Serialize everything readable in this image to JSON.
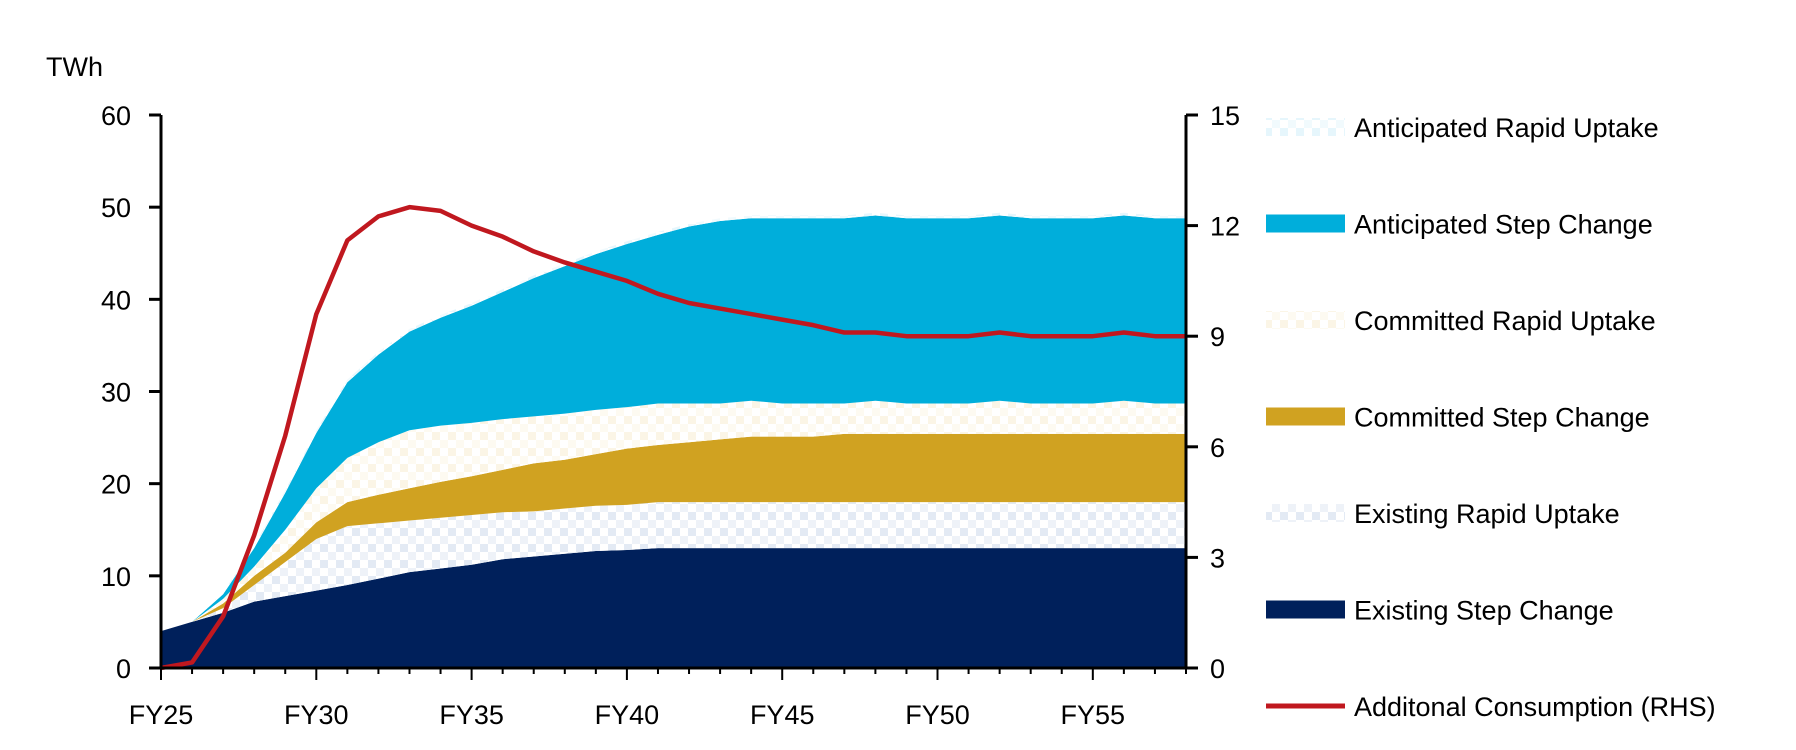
{
  "chart_data": {
    "type": "area",
    "title": "",
    "ylabel": "TWh",
    "y2label": "",
    "ylim": [
      0,
      60
    ],
    "y2lim": [
      0,
      15
    ],
    "yticks": [
      "0",
      "10",
      "20",
      "30",
      "40",
      "50",
      "60"
    ],
    "y2ticks": [
      "0",
      "3",
      "6",
      "9",
      "12",
      "15"
    ],
    "xticks": [
      "FY25",
      "FY30",
      "FY35",
      "FY40",
      "FY45",
      "FY50",
      "FY55"
    ],
    "x": [
      "FY25",
      "FY26",
      "FY27",
      "FY28",
      "FY29",
      "FY30",
      "FY31",
      "FY32",
      "FY33",
      "FY34",
      "FY35",
      "FY36",
      "FY37",
      "FY38",
      "FY39",
      "FY40",
      "FY41",
      "FY42",
      "FY43",
      "FY44",
      "FY45",
      "FY46",
      "FY47",
      "FY48",
      "FY49",
      "FY50",
      "FY51",
      "FY52",
      "FY53",
      "FY54",
      "FY55",
      "FY56",
      "FY57",
      "FY58"
    ],
    "stacked": true,
    "legend_position": "right",
    "series": [
      {
        "name": "Existing Step Change",
        "color": "#00205B",
        "fill": "solid",
        "values": [
          4,
          5,
          6,
          7.2,
          7.8,
          8.4,
          9,
          9.7,
          10.4,
          10.8,
          11.2,
          11.8,
          12.1,
          12.4,
          12.7,
          12.8,
          13,
          13,
          13,
          13,
          13,
          13,
          13,
          13,
          13,
          13,
          13,
          13,
          13,
          13,
          13,
          13,
          13,
          13
        ]
      },
      {
        "name": "Existing Rapid Uptake",
        "color": "#E3EAF4",
        "fill": "pattern",
        "values": [
          0,
          0,
          0.5,
          1.8,
          3.7,
          5.6,
          6.4,
          6.0,
          5.6,
          5.5,
          5.4,
          5.1,
          4.9,
          4.9,
          4.9,
          4.9,
          5,
          5,
          5,
          5,
          5,
          5,
          5,
          5,
          5,
          5,
          5,
          5,
          5,
          5,
          5,
          5,
          5,
          5
        ]
      },
      {
        "name": "Committed Step Change",
        "color": "#D0A221",
        "fill": "solid",
        "values": [
          0,
          0,
          0.5,
          1,
          1,
          1.8,
          2.6,
          3.1,
          3.5,
          3.9,
          4.2,
          4.6,
          5.2,
          5.3,
          5.6,
          6.1,
          6.2,
          6.5,
          6.8,
          7.1,
          7.1,
          7.1,
          7.4,
          7.4,
          7.4,
          7.4,
          7.4,
          7.4,
          7.4,
          7.4,
          7.4,
          7.4,
          7.4,
          7.4
        ]
      },
      {
        "name": "Committed Rapid Uptake",
        "color": "#FBF5E6",
        "fill": "pattern",
        "values": [
          0,
          0,
          0.5,
          1,
          2.5,
          3.7,
          4.8,
          5.7,
          6.3,
          6.1,
          5.8,
          5.5,
          5.1,
          5.0,
          4.8,
          4.5,
          4.5,
          4.2,
          3.9,
          3.9,
          3.6,
          3.6,
          3.3,
          3.6,
          3.3,
          3.3,
          3.3,
          3.6,
          3.3,
          3.3,
          3.3,
          3.6,
          3.3,
          3.3
        ]
      },
      {
        "name": "Anticipated Step Change",
        "color": "#00AEDB",
        "fill": "solid",
        "values": [
          0,
          0,
          0.5,
          2,
          4,
          6,
          8.2,
          9.5,
          10.7,
          11.7,
          12.7,
          13.8,
          15,
          16,
          16.9,
          17.7,
          18.3,
          19.2,
          19.8,
          19.8,
          20.1,
          20.1,
          20.1,
          20.1,
          20.1,
          20.1,
          20.1,
          20.1,
          20.1,
          20.1,
          20.1,
          20.1,
          20.1,
          20.1
        ]
      },
      {
        "name": "Anticipated Rapid Uptake",
        "color": "#E6F6FC",
        "fill": "pattern",
        "values": [
          0,
          0,
          0.2,
          0.3,
          0.3,
          0.3,
          0.3,
          0.3,
          0.3,
          0.3,
          0.3,
          0.3,
          0.3,
          0.3,
          0.3,
          0.3,
          0.3,
          0.3,
          0.3,
          0.3,
          0.3,
          0.3,
          0.3,
          0.3,
          0.3,
          0.3,
          0.3,
          0.3,
          0.3,
          0.3,
          0.3,
          0.3,
          0.3,
          0.3
        ]
      }
    ],
    "line_series": {
      "name": "Additonal Consumption (RHS)",
      "axis": "right",
      "color": "#C0181F",
      "values": [
        0,
        0.15,
        1.4,
        3.6,
        6.3,
        9.6,
        11.6,
        12.25,
        12.5,
        12.4,
        12,
        11.7,
        11.3,
        11,
        10.75,
        10.5,
        10.15,
        9.9,
        9.75,
        9.6,
        9.45,
        9.3,
        9.1,
        9.1,
        9,
        9,
        9,
        9.1,
        9,
        9,
        9,
        9.1,
        9,
        9
      ]
    },
    "legend_order": [
      "Anticipated Rapid Uptake",
      "Anticipated Step Change",
      "Committed Rapid Uptake",
      "Committed Step Change",
      "Existing Rapid Uptake",
      "Existing Step Change",
      "Additonal Consumption (RHS)"
    ]
  }
}
